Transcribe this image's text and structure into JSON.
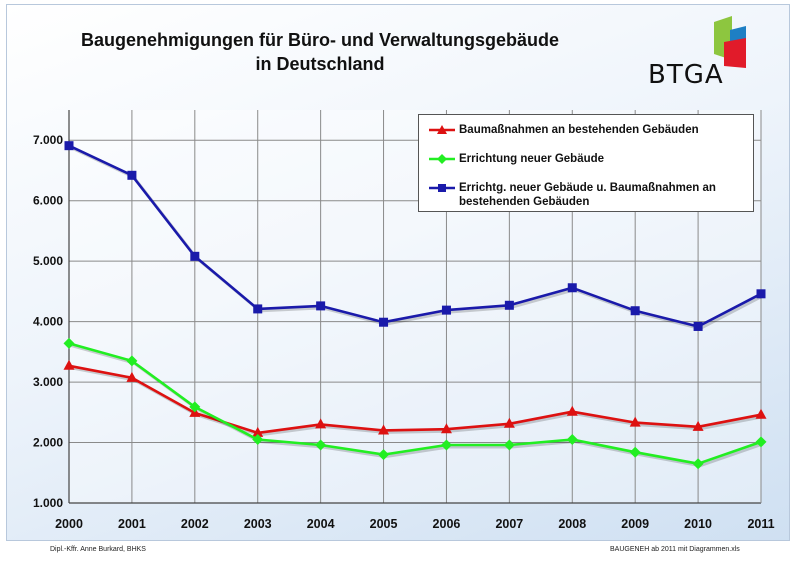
{
  "chart_data": {
    "type": "line",
    "title": "Baugenehmigungen für Büro- und Verwaltungsgebäude\nin Deutschland",
    "title_line1": "Baugenehmigungen für Büro- und Verwaltungsgebäude",
    "title_line2": "in Deutschland",
    "x": [
      "2000",
      "2001",
      "2002",
      "2003",
      "2004",
      "2005",
      "2006",
      "2007",
      "2008",
      "2009",
      "2010",
      "2011"
    ],
    "y_ticks": [
      "1.000",
      "2.000",
      "3.000",
      "4.000",
      "5.000",
      "6.000",
      "7.000"
    ],
    "ylim": [
      1000,
      7500
    ],
    "grid": true,
    "legend_position": "top-right",
    "series": [
      {
        "name": "Baumaßnahmen an  bestehenden Gebäuden",
        "color": "#dd1111",
        "marker": "triangle",
        "values": [
          3270,
          3070,
          2490,
          2160,
          2300,
          2200,
          2220,
          2310,
          2510,
          2330,
          2260,
          2460
        ]
      },
      {
        "name": "Errichtung neuer Gebäude",
        "color": "#22ee22",
        "marker": "diamond",
        "values": [
          3640,
          3350,
          2590,
          2050,
          1960,
          1800,
          1960,
          1960,
          2050,
          1840,
          1650,
          2010
        ]
      },
      {
        "name": "Errichtg. neuer Gebäude u. Baumaßnahmen an bestehenden Gebäuden",
        "name_line1": "Errichtg. neuer Gebäude u. Baumaßnahmen an",
        "name_line2": "bestehenden Gebäuden",
        "color": "#1a1aaa",
        "marker": "square",
        "values": [
          6910,
          6420,
          5080,
          4210,
          4260,
          3990,
          4190,
          4270,
          4560,
          4180,
          3920,
          4460
        ]
      }
    ]
  },
  "logo": {
    "text": "BTGA"
  },
  "footer": {
    "left": "Dipl.-Kffr. Anne Burkard, BHKS",
    "right": "BAUGENEH ab 2011 mit Diagrammen.xls"
  }
}
